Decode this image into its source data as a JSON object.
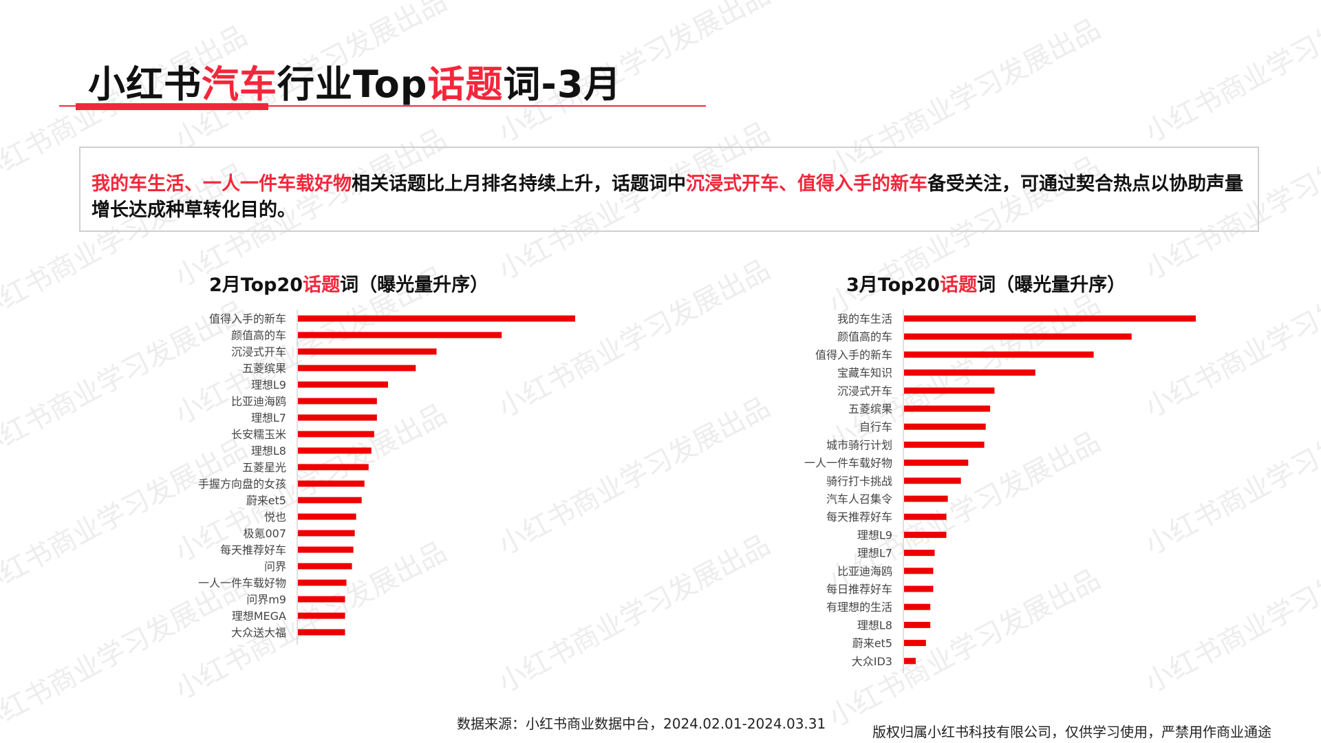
{
  "header": {
    "title_parts": [
      "小红书",
      "汽车",
      "行业Top",
      "话题",
      "词-3月"
    ]
  },
  "summary": {
    "parts": [
      "我的车生活、一人一件车载好物",
      "相关话题比上月排名持续上升，话题词中",
      "沉浸式开车、值得入手的新车",
      "备受关注，可通过契合热点以协助声量增长达成种草转化目的。"
    ]
  },
  "watermark": {
    "text": "小红书商业学习发展出品"
  },
  "footer": {
    "source": "数据来源：小红书商业数据中台，2024.02.01-2024.03.31",
    "copyright": "版权归属小红书科技有限公司，仅供学习使用，严禁用作商业通途"
  },
  "colors": {
    "accent": "#f2273b",
    "bar": "#ee0000",
    "axis": "#bfbfbf"
  },
  "chart_data": [
    {
      "type": "bar",
      "orientation": "horizontal",
      "title_parts": [
        "2月Top20",
        "话题",
        "词（曝光量升序）"
      ],
      "categories": [
        "值得入手的新车",
        "颜值高的车",
        "沉浸式开车",
        "五菱缤果",
        "理想L9",
        "比亚迪海鸥",
        "理想L7",
        "长安糯玉米",
        "理想L8",
        "五菱星光",
        "手握方向盘的女孩",
        "蔚来et5",
        "悦也",
        "极氪007",
        "每天推荐好车",
        "问界",
        "一人一件车载好物",
        "问界m9",
        "理想MEGA",
        "大众送大福"
      ],
      "values": [
        100,
        73.5,
        50,
        42.5,
        32.5,
        28.5,
        28.5,
        27.5,
        26.5,
        25.5,
        24,
        23,
        21,
        20.5,
        20,
        19.5,
        17.5,
        17,
        17,
        17
      ],
      "value_scale": "relative (no axis values printed)",
      "grid": false,
      "legend": "none"
    },
    {
      "type": "bar",
      "orientation": "horizontal",
      "title_parts": [
        "3月Top20",
        "话题",
        "词（曝光量升序）"
      ],
      "categories": [
        "我的车生活",
        "颜值高的车",
        "值得入手的新车",
        "宝藏车知识",
        "沉浸式开车",
        "五菱缤果",
        "自行车",
        "城市骑行计划",
        "一人一件车载好物",
        "骑行打卡挑战",
        "汽车人召集令",
        "每天推荐好车",
        "理想L9",
        "理想L7",
        "比亚迪海鸥",
        "每日推荐好车",
        "有理想的生活",
        "理想L8",
        "蔚来et5",
        "大众ID3"
      ],
      "values": [
        100,
        78,
        65,
        45,
        31,
        29.5,
        28,
        27.5,
        22,
        19.5,
        15,
        14.5,
        14.5,
        10.5,
        10,
        10,
        9,
        9,
        7.5,
        4
      ],
      "value_scale": "relative (no axis values printed)",
      "grid": false,
      "legend": "none"
    }
  ]
}
